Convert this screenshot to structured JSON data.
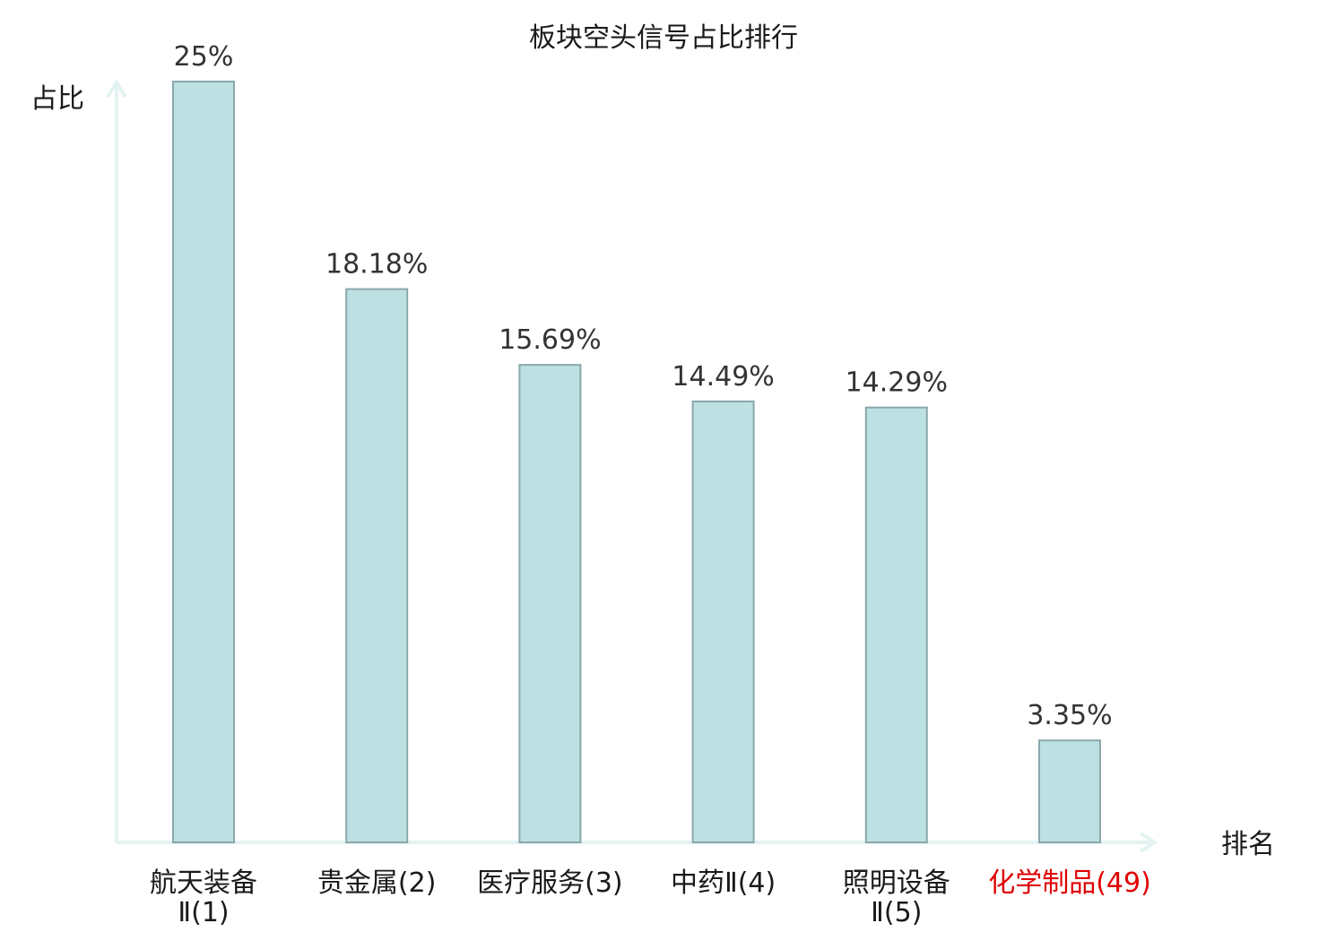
{
  "chart_data": {
    "type": "bar",
    "title": "板块空头信号占比排行",
    "ylabel": "占比",
    "xlabel": "排名",
    "ylim": [
      0,
      25
    ],
    "categories": [
      {
        "label": "航天装备Ⅱ(1)",
        "lines": [
          "航天装备",
          "Ⅱ(1)"
        ],
        "highlight": false
      },
      {
        "label": "贵金属(2)",
        "lines": [
          "贵金属(2)"
        ],
        "highlight": false
      },
      {
        "label": "医疗服务(3)",
        "lines": [
          "医疗服务(3)"
        ],
        "highlight": false
      },
      {
        "label": "中药Ⅱ(4)",
        "lines": [
          "中药Ⅱ(4)"
        ],
        "highlight": false
      },
      {
        "label": "照明设备Ⅱ(5)",
        "lines": [
          "照明设备",
          "Ⅱ(5)"
        ],
        "highlight": false
      },
      {
        "label": "化学制品(49)",
        "lines": [
          "化学制品(49)"
        ],
        "highlight": true
      }
    ],
    "values": [
      25,
      18.18,
      15.69,
      14.49,
      14.29,
      3.35
    ],
    "value_labels": [
      "25%",
      "18.18%",
      "15.69%",
      "14.49%",
      "14.29%",
      "3.35%"
    ],
    "grid": false,
    "colors": {
      "bar": "#bde0e3",
      "bar_edge": "#8aa8ab",
      "axis": "#e3f3f1",
      "highlight": "#e00000"
    }
  }
}
